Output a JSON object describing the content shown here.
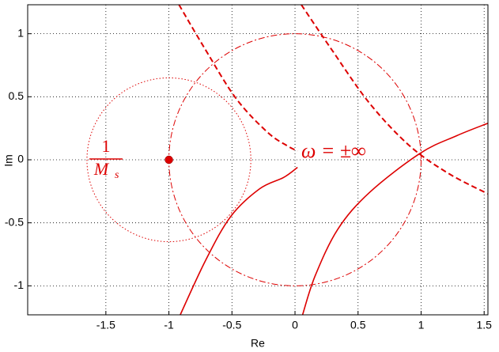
{
  "chart_data": {
    "type": "line",
    "xlabel": "Re",
    "ylabel": "Im",
    "xlim": [
      -2.12,
      1.53
    ],
    "ylim": [
      -1.23,
      1.23
    ],
    "xticks": [
      -1.5,
      -1,
      -0.5,
      0,
      0.5,
      1,
      1.5
    ],
    "yticks": [
      -1,
      -0.5,
      0,
      0.5,
      1
    ],
    "grid": true,
    "series": [
      {
        "color": "#dd0000",
        "style": "solid",
        "x": [
          -0.91,
          -0.71,
          -0.51,
          -0.28,
          -0.09,
          0.02
        ],
        "y": [
          -1.23,
          -0.8,
          -0.45,
          -0.23,
          -0.14,
          -0.06
        ]
      },
      {
        "color": "#dd0000",
        "style": "solid",
        "x": [
          0.06,
          0.16,
          0.34,
          0.59,
          0.99,
          1.28,
          1.53
        ],
        "y": [
          -1.23,
          -0.92,
          -0.55,
          -0.26,
          0.05,
          0.19,
          0.29
        ]
      },
      {
        "color": "#dd0000",
        "style": "dashed",
        "x": [
          -0.92,
          -0.72,
          -0.47,
          -0.22,
          -0.06,
          0.02
        ],
        "y": [
          1.23,
          0.89,
          0.49,
          0.22,
          0.11,
          0.07
        ]
      },
      {
        "color": "#dd0000",
        "style": "dashed",
        "x": [
          0.05,
          0.28,
          0.59,
          0.91,
          1.22,
          1.53
        ],
        "y": [
          1.23,
          0.89,
          0.45,
          0.11,
          -0.11,
          -0.27
        ]
      }
    ],
    "circles": [
      {
        "color": "#dd0000",
        "style": "dashdot",
        "cx": 0,
        "cy": 0,
        "r": 1
      },
      {
        "color": "#dd0000",
        "style": "dotted",
        "cx": -1,
        "cy": 0,
        "r": 0.65
      }
    ],
    "points": {
      "color": "#dd0000",
      "x": [
        -1
      ],
      "y": [
        0
      ]
    },
    "annotations": {
      "ms_numerator": "1",
      "ms_denominator": "M",
      "ms_subscript": "s",
      "omega": "ω = ±∞"
    }
  }
}
